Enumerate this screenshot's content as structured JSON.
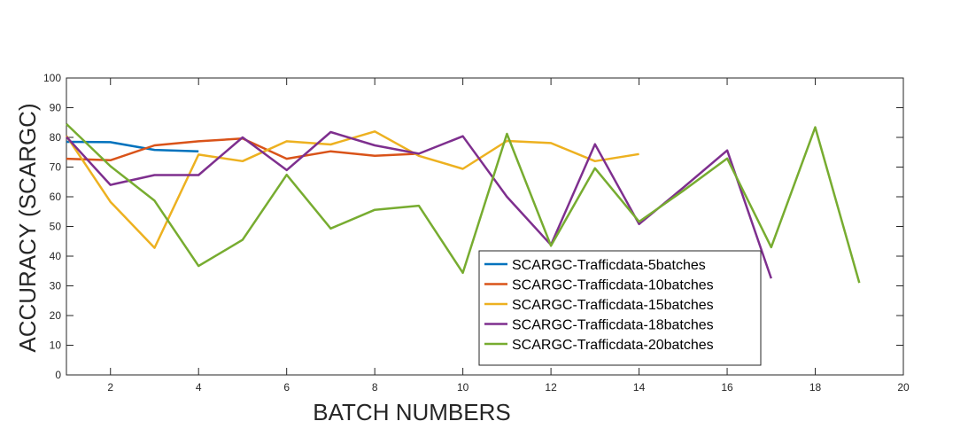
{
  "chart_data": {
    "type": "line",
    "xlabel": "BATCH NUMBERS",
    "ylabel": "ACCURACY (SCARGC)",
    "xlim": [
      1,
      20
    ],
    "ylim": [
      0,
      100
    ],
    "xticks": [
      2,
      4,
      6,
      8,
      10,
      12,
      14,
      16,
      18,
      20
    ],
    "yticks": [
      0,
      10,
      20,
      30,
      40,
      50,
      60,
      70,
      80,
      90,
      100
    ],
    "grid": false,
    "legend_position": "lower-center",
    "series": [
      {
        "name": "SCARGC-Trafficdata-5batches",
        "color": "#0072BD",
        "x": [
          1,
          2,
          3,
          4
        ],
        "y": [
          78.5,
          78.4,
          75.8,
          75.3
        ]
      },
      {
        "name": "SCARGC-Trafficdata-10batches",
        "color": "#D95319",
        "x": [
          1,
          2,
          3,
          4,
          5,
          6,
          7,
          8,
          9
        ],
        "y": [
          72.8,
          72.3,
          77.3,
          78.7,
          79.6,
          72.8,
          75.3,
          73.8,
          74.5
        ]
      },
      {
        "name": "SCARGC-Trafficdata-15batches",
        "color": "#EDB120",
        "x": [
          1,
          2,
          3,
          4,
          5,
          6,
          7,
          8,
          9,
          10,
          11,
          12,
          13,
          14
        ],
        "y": [
          80.5,
          58.3,
          42.8,
          74.2,
          72.0,
          78.7,
          77.6,
          82.0,
          73.8,
          69.4,
          78.8,
          78.1,
          72.0,
          74.4
        ]
      },
      {
        "name": "SCARGC-Trafficdata-18batches",
        "color": "#7E2F8E",
        "x": [
          1,
          2,
          3,
          4,
          5,
          6,
          7,
          8,
          9,
          10,
          11,
          12,
          13,
          14,
          15,
          16,
          17
        ],
        "y": [
          80.2,
          64.0,
          67.3,
          67.3,
          80.0,
          69.0,
          81.8,
          77.3,
          74.5,
          80.4,
          60.0,
          43.8,
          77.7,
          50.8,
          63.0,
          75.6,
          32.5
        ]
      },
      {
        "name": "SCARGC-Trafficdata-20batches",
        "color": "#77AC30",
        "x": [
          1,
          2,
          3,
          4,
          5,
          6,
          7,
          8,
          9,
          10,
          11,
          12,
          13,
          14,
          15,
          16,
          17,
          18,
          19
        ],
        "y": [
          84.5,
          70.3,
          58.7,
          36.7,
          45.5,
          67.4,
          49.3,
          55.6,
          57.0,
          34.4,
          81.2,
          43.5,
          69.6,
          51.6,
          62.0,
          72.9,
          43.0,
          83.4,
          31.0
        ]
      }
    ]
  }
}
